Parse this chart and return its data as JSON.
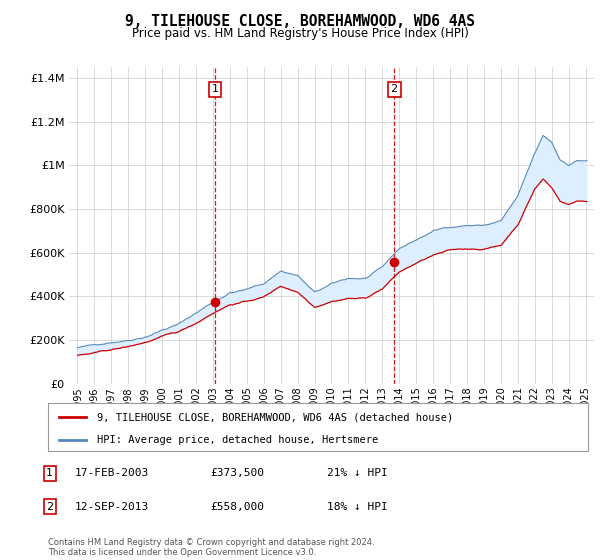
{
  "title": "9, TILEHOUSE CLOSE, BOREHAMWOOD, WD6 4AS",
  "subtitle": "Price paid vs. HM Land Registry's House Price Index (HPI)",
  "sale1_label": "17-FEB-2003",
  "sale1_price": 373500,
  "sale1_x": 2003.13,
  "sale1_hpi_pct": "21% ↓ HPI",
  "sale2_label": "12-SEP-2013",
  "sale2_price": 558000,
  "sale2_x": 2013.7,
  "sale2_hpi_pct": "18% ↓ HPI",
  "red_line_label": "9, TILEHOUSE CLOSE, BOREHAMWOOD, WD6 4AS (detached house)",
  "blue_line_label": "HPI: Average price, detached house, Hertsmere",
  "footer": "Contains HM Land Registry data © Crown copyright and database right 2024.\nThis data is licensed under the Open Government Licence v3.0.",
  "red_color": "#cc0000",
  "blue_color": "#5588bb",
  "shaded_color": "#ddeeff",
  "background_color": "#ffffff",
  "grid_color": "#cccccc",
  "ylim": [
    0,
    1450000
  ],
  "yticks": [
    0,
    200000,
    400000,
    600000,
    800000,
    1000000,
    1200000,
    1400000
  ],
  "ylabel_fmt": [
    "£0",
    "£200K",
    "£400K",
    "£600K",
    "£800K",
    "£1M",
    "£1.2M",
    "£1.4M"
  ],
  "xlim_left": 1994.5,
  "xlim_right": 2025.5
}
